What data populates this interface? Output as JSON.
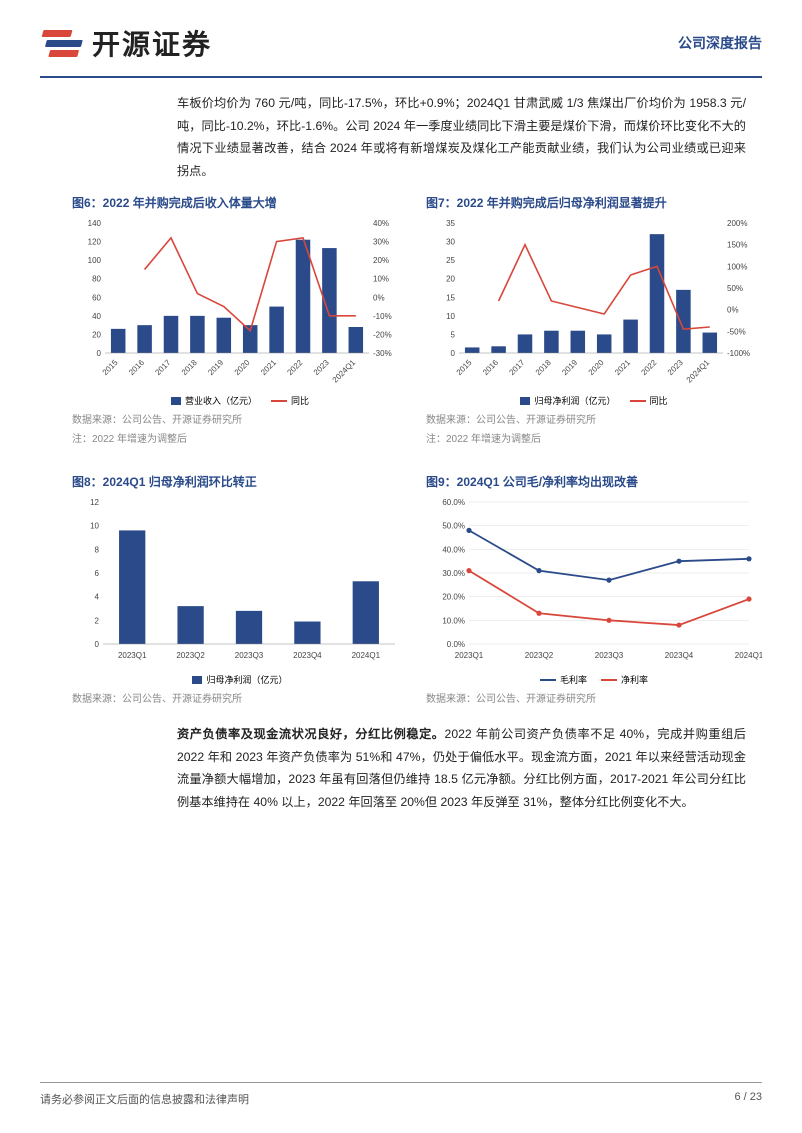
{
  "brand_name": "开源证券",
  "report_type": "公司深度报告",
  "intro_para": "车板价均价为 760 元/吨，同比-17.5%，环比+0.9%；2024Q1 甘肃武威 1/3 焦煤出厂价均价为 1958.3 元/吨，同比-10.2%，环比-1.6%。公司 2024 年一季度业绩同比下滑主要是煤价下滑，而煤价环比变化不大的情况下业绩显著改善，结合 2024 年或将有新增煤炭及煤化工产能贡献业绩，我们认为公司业绩或已迎来拐点。",
  "chart6": {
    "title": "图6：2022 年并购完成后收入体量大增",
    "type": "bar+line",
    "categories": [
      "2015",
      "2016",
      "2017",
      "2018",
      "2019",
      "2020",
      "2021",
      "2022",
      "2023",
      "2024Q1"
    ],
    "bars": [
      26,
      30,
      40,
      40,
      38,
      30,
      50,
      122,
      113,
      28
    ],
    "bar_ylim": [
      0,
      140
    ],
    "bar_ticks": [
      0,
      20,
      40,
      60,
      80,
      100,
      120,
      140
    ],
    "line": [
      null,
      15,
      32,
      2,
      -5,
      -18,
      30,
      32,
      -10,
      -10
    ],
    "line_ylim": [
      -30,
      40
    ],
    "line_ticks": [
      -30,
      -20,
      -10,
      0,
      10,
      20,
      30,
      40
    ],
    "bar_color": "#2a4a8a",
    "line_color": "#d9463a",
    "legend_bar": "营业收入（亿元）",
    "legend_line": "同比",
    "source": "数据来源：公司公告、开源证券研究所",
    "note": "注：2022 年增速为调整后"
  },
  "chart7": {
    "title": "图7：2022 年并购完成后归母净利润显著提升",
    "type": "bar+line",
    "categories": [
      "2015",
      "2016",
      "2017",
      "2018",
      "2019",
      "2020",
      "2021",
      "2022",
      "2023",
      "2024Q1"
    ],
    "bars": [
      1.5,
      1.8,
      5,
      6,
      6,
      5,
      9,
      32,
      17,
      5.5
    ],
    "bar_ylim": [
      0,
      35
    ],
    "bar_ticks": [
      0,
      5,
      10,
      15,
      20,
      25,
      30,
      35
    ],
    "line": [
      null,
      20,
      150,
      20,
      5,
      -10,
      80,
      100,
      -45,
      -40
    ],
    "line_ylim": [
      -100,
      200
    ],
    "line_ticks": [
      -100,
      -50,
      0,
      50,
      100,
      150,
      200
    ],
    "bar_color": "#2a4a8a",
    "line_color": "#d9463a",
    "legend_bar": "归母净利润（亿元）",
    "legend_line": "同比",
    "source": "数据来源：公司公告、开源证券研究所",
    "note": "注：2022 年增速为调整后"
  },
  "chart8": {
    "title": "图8：2024Q1 归母净利润环比转正",
    "type": "bar",
    "categories": [
      "2023Q1",
      "2023Q2",
      "2023Q3",
      "2023Q4",
      "2024Q1"
    ],
    "bars": [
      9.6,
      3.2,
      2.8,
      1.9,
      5.3
    ],
    "bar_ylim": [
      0,
      12
    ],
    "bar_ticks": [
      0,
      2,
      4,
      6,
      8,
      10,
      12
    ],
    "bar_color": "#2a4a8a",
    "legend_bar": "归母净利润（亿元）",
    "source": "数据来源：公司公告、开源证券研究所"
  },
  "chart9": {
    "title": "图9：2024Q1 公司毛/净利率均出现改善",
    "type": "line2",
    "categories": [
      "2023Q1",
      "2023Q2",
      "2023Q3",
      "2023Q4",
      "2024Q1"
    ],
    "line1": [
      48,
      31,
      27,
      35,
      36
    ],
    "line2": [
      31,
      13,
      10,
      8,
      19
    ],
    "ylim": [
      0,
      60
    ],
    "ticks": [
      0,
      10,
      20,
      30,
      40,
      50,
      60
    ],
    "tick_labels": [
      "0.0%",
      "10.0%",
      "20.0%",
      "30.0%",
      "40.0%",
      "50.0%",
      "60.0%"
    ],
    "c1": "#2a4a8a",
    "c2": "#d9463a",
    "legend1": "毛利率",
    "legend2": "净利率",
    "source": "数据来源：公司公告、开源证券研究所"
  },
  "section_bold": "资产负债率及现金流状况良好，分红比例稳定。",
  "section_para": "2022 年前公司资产负债率不足 40%，完成并购重组后 2022 年和 2023 年资产负债率为 51%和 47%，仍处于偏低水平。现金流方面，2021 年以来经营活动现金流量净额大幅增加，2023 年虽有回落但仍维持 18.5 亿元净额。分红比例方面，2017-2021 年公司分红比例基本维持在 40% 以上，2022 年回落至 20%但 2023 年反弹至 31%，整体分红比例变化不大。",
  "footer_left": "请务必参阅正文后面的信息披露和法律声明",
  "footer_right": "6 / 23"
}
